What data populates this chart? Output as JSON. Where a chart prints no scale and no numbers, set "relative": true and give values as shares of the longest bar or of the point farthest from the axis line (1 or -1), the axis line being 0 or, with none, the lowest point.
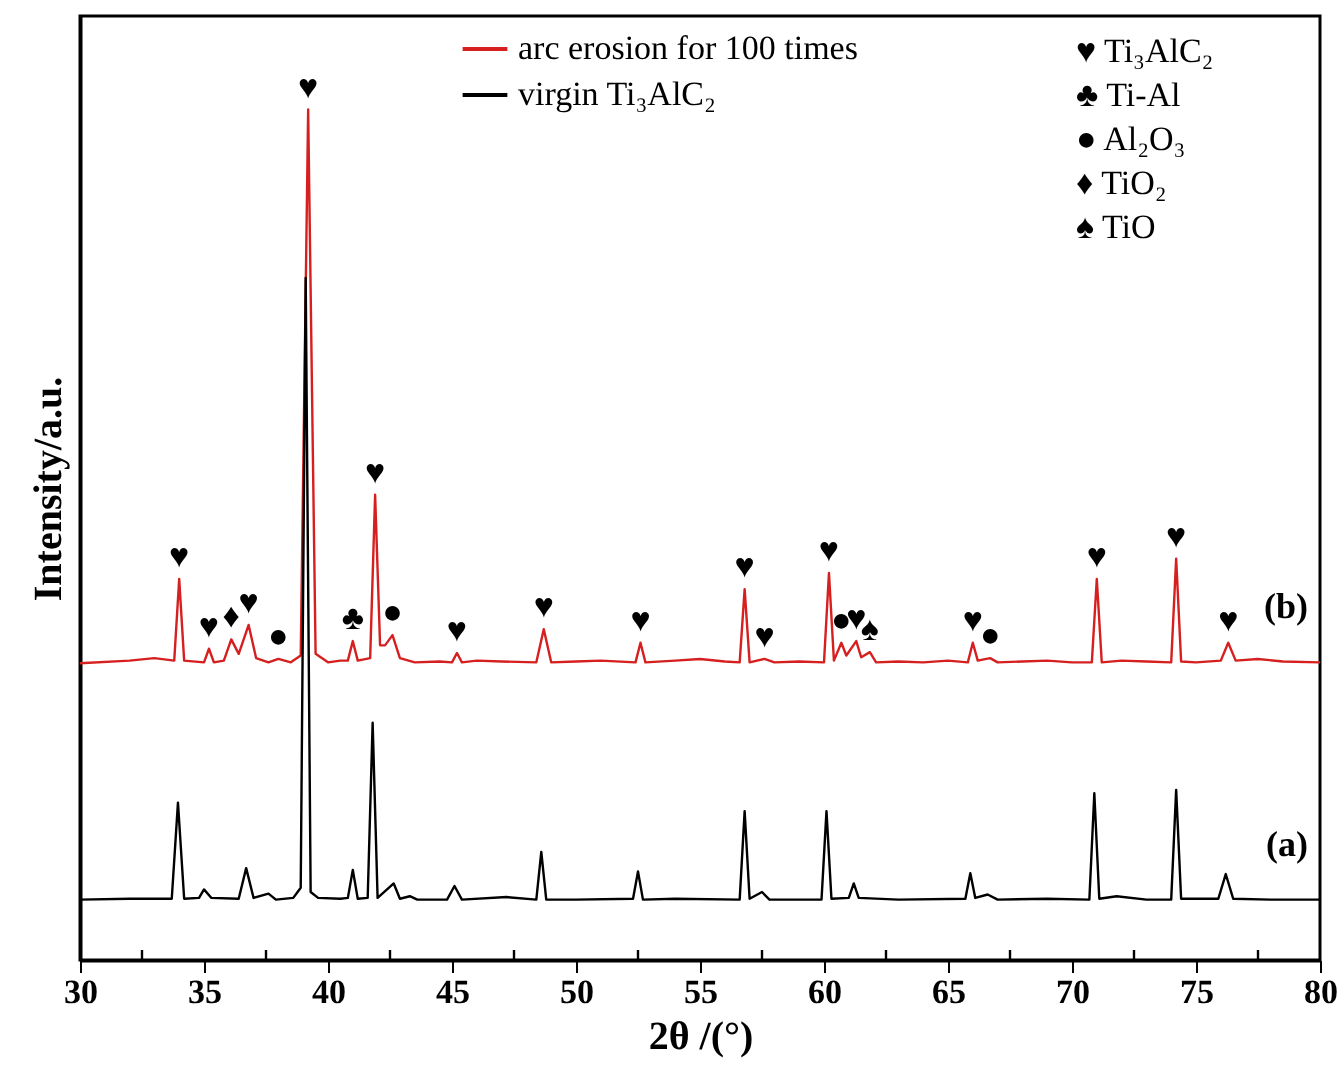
{
  "chart_data": {
    "type": "line",
    "xlabel": "2θ /(°)",
    "ylabel": "Intensity/a.u.",
    "relative": true,
    "legend": "top",
    "grid": false,
    "marker": "none",
    "line_style": "solid",
    "xlim": [
      30,
      80
    ],
    "xticks": [
      30,
      {
        "value": 32.5,
        "label": null
      },
      35,
      {
        "value": 37.5,
        "label": null
      },
      40,
      {
        "value": 42.5,
        "label": null
      },
      45,
      {
        "value": 47.5,
        "label": null
      },
      50,
      {
        "value": 52.5,
        "label": null
      },
      55,
      {
        "value": 57.5,
        "label": null
      },
      60,
      {
        "value": 62.5,
        "label": null
      },
      65,
      {
        "value": 67.5,
        "label": null
      },
      70,
      {
        "value": 72.5,
        "label": null
      },
      75,
      {
        "value": 77.5,
        "label": null
      },
      80
    ],
    "series": [
      {
        "name": "arc erosion for 100 times",
        "color": "#d62020",
        "x": [
          30,
          32,
          33,
          33.8,
          34.0,
          34.2,
          35.0,
          35.2,
          35.4,
          35.8,
          36.1,
          36.4,
          36.8,
          37.1,
          37.6,
          38.0,
          38.5,
          38.9,
          39.2,
          39.5,
          40.0,
          40.5,
          40.8,
          41.0,
          41.2,
          41.7,
          41.9,
          42.1,
          42.3,
          42.6,
          42.9,
          43.5,
          44.5,
          45.0,
          45.2,
          45.4,
          46,
          47,
          48.4,
          48.7,
          49.0,
          50,
          51,
          52.4,
          52.6,
          52.8,
          54,
          55,
          56,
          56.6,
          56.8,
          57.0,
          57.6,
          58,
          59,
          60.0,
          60.2,
          60.4,
          60.7,
          60.9,
          61.3,
          61.5,
          61.85,
          62.1,
          63,
          64,
          65,
          65.8,
          66.0,
          66.2,
          66.7,
          67,
          68,
          69,
          70,
          70.8,
          71.0,
          71.2,
          72,
          73,
          74.0,
          74.2,
          74.4,
          75,
          76.0,
          76.3,
          76.6,
          77.5,
          78.5,
          80
        ],
        "values": [
          0.349,
          0.352,
          0.355,
          0.352,
          0.448,
          0.352,
          0.35,
          0.366,
          0.35,
          0.352,
          0.377,
          0.36,
          0.394,
          0.355,
          0.35,
          0.354,
          0.35,
          0.358,
          1.0,
          0.36,
          0.35,
          0.352,
          0.352,
          0.375,
          0.352,
          0.355,
          0.547,
          0.37,
          0.37,
          0.382,
          0.355,
          0.35,
          0.351,
          0.35,
          0.361,
          0.35,
          0.352,
          0.351,
          0.35,
          0.389,
          0.35,
          0.351,
          0.352,
          0.35,
          0.373,
          0.35,
          0.352,
          0.354,
          0.351,
          0.35,
          0.436,
          0.35,
          0.354,
          0.35,
          0.351,
          0.35,
          0.455,
          0.352,
          0.373,
          0.358,
          0.375,
          0.356,
          0.362,
          0.35,
          0.351,
          0.35,
          0.352,
          0.35,
          0.373,
          0.352,
          0.355,
          0.35,
          0.351,
          0.352,
          0.35,
          0.35,
          0.448,
          0.35,
          0.352,
          0.351,
          0.35,
          0.472,
          0.351,
          0.35,
          0.352,
          0.373,
          0.352,
          0.354,
          0.351,
          0.35
        ]
      },
      {
        "name": "virgin Ti₃AlC₂",
        "color": "#000000",
        "x": [
          30,
          32,
          33.7,
          33.95,
          34.2,
          34.8,
          35.0,
          35.3,
          36.4,
          36.7,
          37.0,
          37.6,
          37.9,
          38.6,
          38.9,
          39.1,
          39.3,
          39.6,
          40.5,
          40.8,
          41.0,
          41.2,
          41.6,
          41.8,
          42.0,
          42.65,
          42.9,
          43.3,
          43.6,
          44.8,
          45.1,
          45.4,
          47.2,
          48.4,
          48.6,
          48.8,
          50,
          52.3,
          52.5,
          52.7,
          54,
          56.6,
          56.8,
          57.0,
          57.5,
          57.8,
          59.9,
          60.1,
          60.3,
          61.0,
          61.2,
          61.4,
          63,
          65.7,
          65.9,
          66.1,
          66.6,
          67,
          69,
          70.7,
          70.9,
          71.1,
          71.8,
          73,
          74.0,
          74.2,
          74.4,
          75.9,
          76.2,
          76.5,
          78,
          80
        ],
        "values": [
          0.071,
          0.072,
          0.072,
          0.185,
          0.072,
          0.073,
          0.083,
          0.073,
          0.072,
          0.108,
          0.073,
          0.078,
          0.071,
          0.073,
          0.085,
          0.802,
          0.08,
          0.073,
          0.072,
          0.073,
          0.106,
          0.072,
          0.073,
          0.279,
          0.073,
          0.09,
          0.072,
          0.075,
          0.071,
          0.071,
          0.087,
          0.071,
          0.074,
          0.071,
          0.127,
          0.071,
          0.071,
          0.072,
          0.104,
          0.071,
          0.072,
          0.071,
          0.175,
          0.072,
          0.08,
          0.071,
          0.071,
          0.175,
          0.072,
          0.073,
          0.09,
          0.073,
          0.071,
          0.072,
          0.102,
          0.073,
          0.077,
          0.071,
          0.072,
          0.071,
          0.196,
          0.072,
          0.075,
          0.071,
          0.071,
          0.2,
          0.072,
          0.072,
          0.101,
          0.072,
          0.071,
          0.071
        ]
      }
    ],
    "annotations": [
      "♥  Ti₃AlC₂",
      "♣  Ti-Al",
      "●  Al₂O₃",
      "♦  TiO₂",
      "♠  TiO",
      {
        "text": "♥",
        "x": 34.0,
        "y": 0.448
      },
      {
        "text": "♥",
        "x": 35.2,
        "y": 0.366
      },
      {
        "text": "♦",
        "x": 36.1,
        "y": 0.377
      },
      {
        "text": "♥",
        "x": 36.8,
        "y": 0.394
      },
      {
        "text": "●",
        "x": 38.0,
        "y": 0.354
      },
      {
        "text": "♥",
        "x": 39.2,
        "y": 1.0
      },
      {
        "text": "♣",
        "x": 41.0,
        "y": 0.375
      },
      {
        "text": "♥",
        "x": 41.9,
        "y": 0.547
      },
      {
        "text": "●",
        "x": 42.6,
        "y": 0.382
      },
      {
        "text": "♥",
        "x": 45.2,
        "y": 0.361
      },
      {
        "text": "♥",
        "x": 48.7,
        "y": 0.389
      },
      {
        "text": "♥",
        "x": 52.6,
        "y": 0.373
      },
      {
        "text": "♥",
        "x": 56.8,
        "y": 0.436
      },
      {
        "text": "♥",
        "x": 57.6,
        "y": 0.354
      },
      {
        "text": "♥",
        "x": 60.2,
        "y": 0.455
      },
      {
        "text": "●",
        "x": 60.7,
        "y": 0.373
      },
      {
        "text": "♥",
        "x": 61.3,
        "y": 0.375
      },
      {
        "text": "♠",
        "x": 61.85,
        "y": 0.362
      },
      {
        "text": "♥",
        "x": 66.0,
        "y": 0.373
      },
      {
        "text": "●",
        "x": 66.7,
        "y": 0.355
      },
      {
        "text": "♥",
        "x": 71.0,
        "y": 0.448
      },
      {
        "text": "♥",
        "x": 74.2,
        "y": 0.472
      },
      {
        "text": "♥",
        "x": 76.3,
        "y": 0.373
      },
      {
        "text": "(b)",
        "x": 80,
        "y": 0.35
      },
      {
        "text": "(a)",
        "x": 80,
        "y": 0.071
      }
    ]
  }
}
